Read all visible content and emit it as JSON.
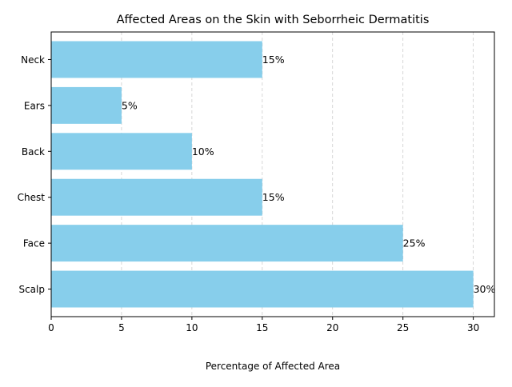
{
  "chart_data": {
    "type": "bar",
    "orientation": "horizontal",
    "title": "Affected Areas on the Skin with Seborrheic Dermatitis",
    "xlabel": "Percentage of Affected Area",
    "ylabel": "",
    "categories": [
      "Scalp",
      "Face",
      "Chest",
      "Back",
      "Ears",
      "Neck"
    ],
    "values": [
      30,
      25,
      15,
      10,
      5,
      15
    ],
    "data_labels": [
      "30%",
      "25%",
      "15%",
      "10%",
      "5%",
      "15%"
    ],
    "xticks": [
      0,
      5,
      10,
      15,
      20,
      25,
      30
    ],
    "xtick_labels": [
      "0",
      "5",
      "10",
      "15",
      "20",
      "25",
      "30"
    ],
    "xlim": [
      0,
      31.5
    ],
    "grid": {
      "x": true,
      "y": false,
      "style": "dashed"
    },
    "bar_color": "#87CEEB",
    "grid_color": "#cccccc"
  }
}
